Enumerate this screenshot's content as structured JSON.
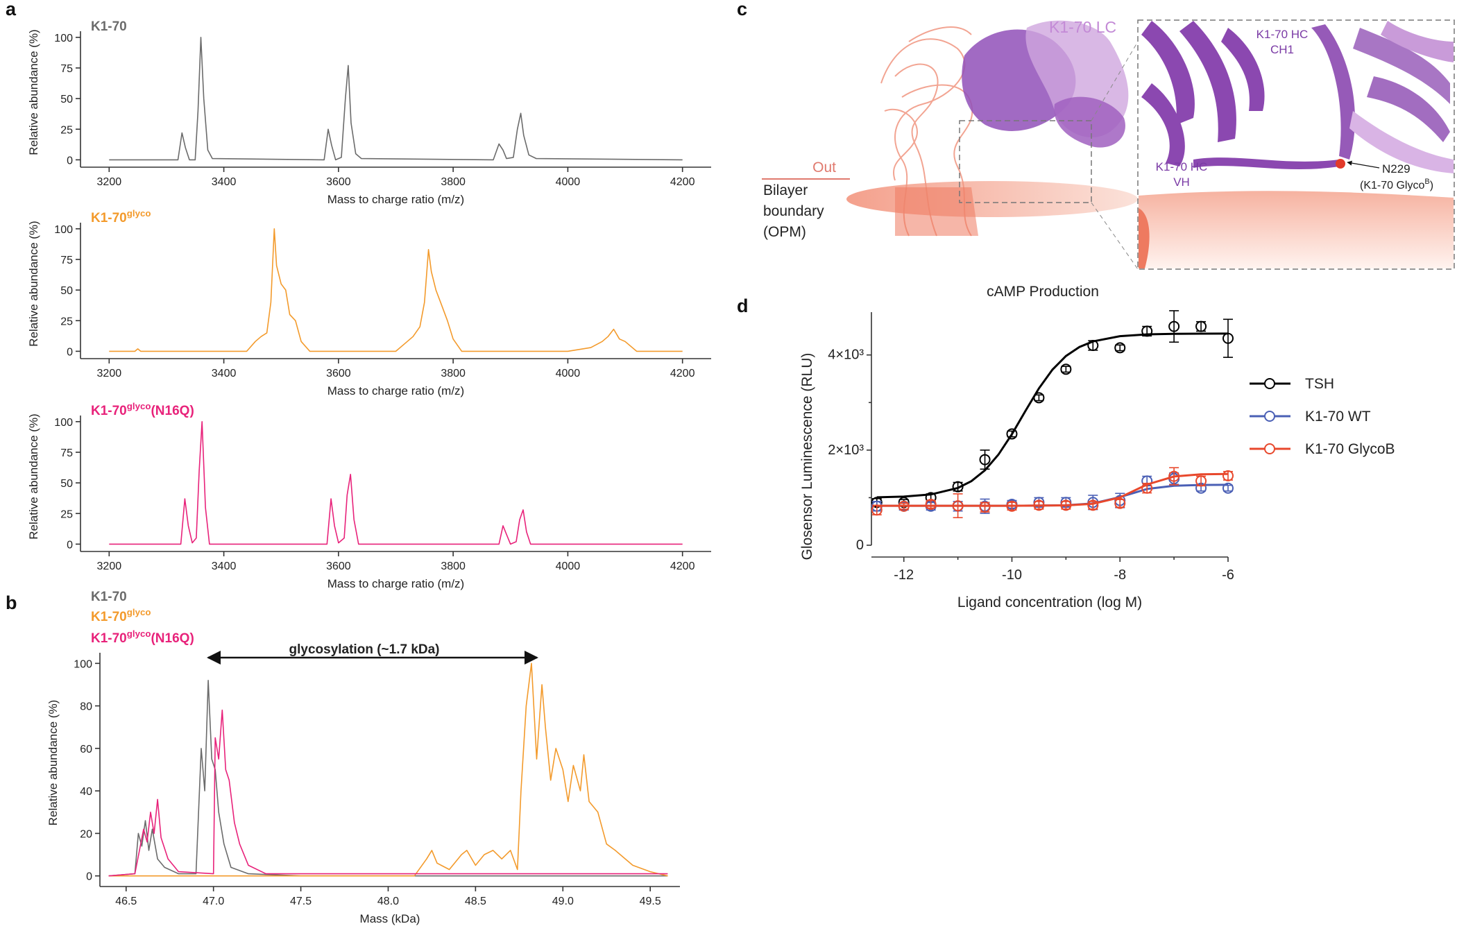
{
  "panel_labels": [
    "a",
    "b",
    "c",
    "d"
  ],
  "chart_data": [
    {
      "type": "line",
      "title": [
        "K1-70"
      ],
      "xlabel": "Mass to charge ratio (m/z)",
      "ylabel": "Relative abundance (%)",
      "xlim": [
        3150,
        4250
      ],
      "ylim": [
        -6,
        105
      ],
      "xticks": [
        3200,
        3400,
        3600,
        3800,
        4000,
        4200
      ],
      "yticks": [
        0,
        25,
        50,
        75,
        100
      ],
      "series": [
        {
          "color": "#6b6b6b",
          "x": [
            3200,
            3320,
            3327,
            3333,
            3340,
            3350,
            3355,
            3360,
            3365,
            3372,
            3380,
            3575,
            3582,
            3588,
            3595,
            3605,
            3612,
            3617,
            3622,
            3630,
            3640,
            3870,
            3880,
            3887,
            3893,
            3905,
            3912,
            3918,
            3923,
            3932,
            3945,
            4200
          ],
          "values": [
            0,
            0,
            22,
            10,
            0,
            0,
            40,
            100,
            50,
            8,
            1,
            0,
            25,
            12,
            0,
            2,
            50,
            77,
            30,
            5,
            1,
            0,
            13,
            8,
            1,
            2,
            25,
            38,
            20,
            4,
            1,
            0
          ]
        }
      ]
    },
    {
      "type": "line",
      "title": [
        "K1-70",
        "glyco"
      ],
      "xlabel": "Mass to charge ratio (m/z)",
      "ylabel": "Relative abundance (%)",
      "xlim": [
        3150,
        4250
      ],
      "ylim": [
        -6,
        105
      ],
      "xticks": [
        3200,
        3400,
        3600,
        3800,
        4000,
        4200
      ],
      "yticks": [
        0,
        25,
        50,
        75,
        100
      ],
      "series": [
        {
          "color": "#f39a2b",
          "x": [
            3200,
            3245,
            3250,
            3255,
            3440,
            3455,
            3465,
            3475,
            3482,
            3488,
            3492,
            3500,
            3508,
            3515,
            3525,
            3535,
            3550,
            3700,
            3715,
            3730,
            3742,
            3750,
            3757,
            3762,
            3770,
            3778,
            3790,
            3800,
            3815,
            4000,
            4040,
            4060,
            4070,
            4080,
            4090,
            4100,
            4120,
            4200
          ],
          "values": [
            0,
            0,
            2,
            0,
            0,
            8,
            12,
            15,
            40,
            100,
            70,
            55,
            50,
            30,
            25,
            8,
            0,
            0,
            6,
            12,
            20,
            40,
            83,
            65,
            50,
            40,
            25,
            10,
            0,
            0,
            3,
            8,
            12,
            18,
            10,
            8,
            0,
            0
          ]
        }
      ]
    },
    {
      "type": "line",
      "title": [
        "K1-70",
        "glyco",
        "(N16Q)"
      ],
      "xlabel": "Mass to charge ratio (m/z)",
      "ylabel": "Relative abundance (%)",
      "xlim": [
        3150,
        4250
      ],
      "ylim": [
        -6,
        105
      ],
      "xticks": [
        3200,
        3400,
        3600,
        3800,
        4000,
        4200
      ],
      "yticks": [
        0,
        25,
        50,
        75,
        100
      ],
      "series": [
        {
          "color": "#e8227a",
          "x": [
            3200,
            3325,
            3332,
            3338,
            3345,
            3352,
            3357,
            3362,
            3368,
            3375,
            3580,
            3587,
            3593,
            3600,
            3610,
            3615,
            3621,
            3627,
            3635,
            3880,
            3887,
            3893,
            3900,
            3910,
            3916,
            3922,
            3928,
            3935,
            4200
          ],
          "values": [
            0,
            0,
            37,
            15,
            1,
            5,
            60,
            100,
            30,
            0,
            0,
            37,
            15,
            1,
            5,
            40,
            57,
            20,
            0,
            0,
            15,
            8,
            0,
            2,
            20,
            28,
            10,
            0,
            0
          ]
        }
      ]
    },
    {
      "type": "line",
      "xlabel": "Mass (kDa)",
      "ylabel": "Relative abundance (%)",
      "annotation": "glycosylation (~1.7 kDa)",
      "xlim": [
        46.35,
        49.67
      ],
      "ylim": [
        -5,
        105
      ],
      "xticks": [
        46.5,
        {
          "value": 47,
          "label": "47.0"
        },
        47.5,
        {
          "value": 48,
          "label": "48.0"
        },
        48.5,
        {
          "value": 49,
          "label": "49.0"
        },
        49.5
      ],
      "yticks": [
        0,
        20,
        40,
        60,
        80,
        100
      ],
      "series": [
        {
          "name": [
            "K1-70"
          ],
          "color": "#6b6b6b",
          "x": [
            46.4,
            46.55,
            46.57,
            46.59,
            46.61,
            46.63,
            46.65,
            46.68,
            46.72,
            46.8,
            46.9,
            46.93,
            46.95,
            46.97,
            46.99,
            47.01,
            47.03,
            47.06,
            47.1,
            47.2,
            47.5,
            49.6
          ],
          "values": [
            0,
            1,
            20,
            14,
            26,
            12,
            22,
            8,
            4,
            1,
            1,
            60,
            40,
            92,
            55,
            50,
            30,
            15,
            4,
            1,
            0,
            0
          ]
        },
        {
          "name": [
            "K1-70",
            "glyco"
          ],
          "color": "#f39a2b",
          "x": [
            46.4,
            48.15,
            48.22,
            48.25,
            48.28,
            48.35,
            48.42,
            48.45,
            48.5,
            48.55,
            48.6,
            48.65,
            48.7,
            48.74,
            48.76,
            48.79,
            48.82,
            48.85,
            48.88,
            48.9,
            48.93,
            48.96,
            49.0,
            49.03,
            49.06,
            49.1,
            49.12,
            49.15,
            49.2,
            49.25,
            49.3,
            49.4,
            49.5,
            49.6
          ],
          "values": [
            0,
            0,
            8,
            12,
            6,
            3,
            10,
            12,
            5,
            10,
            12,
            8,
            12,
            3,
            40,
            80,
            100,
            55,
            90,
            70,
            45,
            60,
            50,
            35,
            52,
            40,
            57,
            35,
            30,
            15,
            12,
            5,
            2,
            0
          ]
        },
        {
          "name": [
            "K1-70",
            "glyco",
            "(N16Q)"
          ],
          "color": "#e8227a",
          "x": [
            46.4,
            46.55,
            46.6,
            46.62,
            46.64,
            46.66,
            46.68,
            46.7,
            46.74,
            46.8,
            47.0,
            47.01,
            47.03,
            47.05,
            47.07,
            47.09,
            47.12,
            47.15,
            47.2,
            47.3,
            49.6
          ],
          "values": [
            0,
            1,
            22,
            16,
            30,
            20,
            36,
            18,
            8,
            2,
            1,
            65,
            55,
            78,
            50,
            45,
            25,
            15,
            5,
            1,
            1
          ]
        }
      ]
    },
    {
      "type": "dose-response",
      "title": "cAMP Production",
      "xlabel": "Ligand concentration (log M)",
      "ylabel": "Glosensor Luminescence (RLU)",
      "xlim": [
        -12.6,
        -6
      ],
      "ylim": [
        0,
        4900
      ],
      "xticks": [
        -12,
        -10,
        -8,
        -6
      ],
      "xminorticks": [
        -11,
        -9,
        -7
      ],
      "yticks": [
        0,
        {
          "value": 2000,
          "label": "2×10³"
        },
        {
          "value": 4000,
          "label": "4×10³"
        }
      ],
      "yminorticks": [
        1000,
        3000
      ],
      "series": [
        {
          "name": "TSH",
          "color": "#000000",
          "x": [
            -12.5,
            -12,
            -11.5,
            -11,
            -10.5,
            -10,
            -9.5,
            -9,
            -8.5,
            -8,
            -7.5,
            -7,
            -6.5,
            -6
          ],
          "values": [
            900,
            900,
            1000,
            1230,
            1800,
            2340,
            3100,
            3700,
            4200,
            4150,
            4500,
            4600,
            4600,
            4350
          ],
          "errors": [
            80,
            60,
            80,
            90,
            200,
            60,
            60,
            60,
            100,
            60,
            100,
            330,
            100,
            400
          ],
          "fit_x": [
            -12.5,
            -12,
            -11.5,
            -11,
            -10.75,
            -10.5,
            -10.25,
            -10,
            -9.75,
            -9.5,
            -9.25,
            -9,
            -8.75,
            -8.5,
            -8,
            -7.5,
            -7,
            -6.5,
            -6
          ],
          "fit_values": [
            1007,
            1022,
            1068,
            1205,
            1348,
            1574,
            1904,
            2335,
            2824,
            3298,
            3691,
            3979,
            4168,
            4285,
            4396,
            4433,
            4444,
            4448,
            4450
          ]
        },
        {
          "name": "K1-70 WT",
          "color": "#4a5fb5",
          "x": [
            -12.5,
            -12,
            -11.5,
            -11,
            -10.5,
            -10,
            -9.5,
            -9,
            -8.5,
            -8,
            -7.5,
            -7,
            -6.5,
            -6
          ],
          "values": [
            820,
            820,
            820,
            820,
            820,
            860,
            900,
            900,
            900,
            940,
            1350,
            1400,
            1200,
            1200
          ],
          "errors": [
            100,
            80,
            80,
            100,
            150,
            80,
            100,
            100,
            150,
            150,
            100,
            120,
            60,
            60
          ],
          "fit_x": [
            -12.5,
            -10,
            -9,
            -8.5,
            -8,
            -7.5,
            -7,
            -6.5,
            -6
          ],
          "fit_values": [
            830,
            830,
            840,
            879,
            1012,
            1182,
            1251,
            1267,
            1270
          ]
        },
        {
          "name": "K1-70 GlycoB",
          "color": "#e8482c",
          "x": [
            -12.5,
            -12,
            -11.5,
            -11,
            -10.5,
            -10,
            -9.5,
            -9,
            -8.5,
            -8,
            -7.5,
            -7,
            -6.5,
            -6
          ],
          "values": [
            740,
            820,
            860,
            830,
            800,
            820,
            840,
            840,
            840,
            880,
            1200,
            1450,
            1350,
            1460
          ],
          "errors": [
            100,
            60,
            80,
            250,
            100,
            80,
            80,
            80,
            80,
            80,
            100,
            180,
            100,
            90
          ],
          "fit_x": [
            -12.5,
            -10,
            -9,
            -8.5,
            -8,
            -7.5,
            -7,
            -6.5,
            -6
          ],
          "fit_values": [
            830,
            830,
            837,
            870,
            1005,
            1276,
            1445,
            1490,
            1498
          ]
        }
      ]
    }
  ],
  "structure_panel": {
    "lc_label": "K1-70 LC",
    "out_label": "Out",
    "bilayer_label": [
      "Bilayer",
      "boundary",
      "(OPM)"
    ],
    "ch1_label": [
      "K1-70 HC",
      "CH1"
    ],
    "vh_label": [
      "K1-70 HC",
      "VH"
    ],
    "site_label": "N229",
    "site_note": [
      "(K1-70 Glyco",
      "B",
      ")"
    ]
  }
}
